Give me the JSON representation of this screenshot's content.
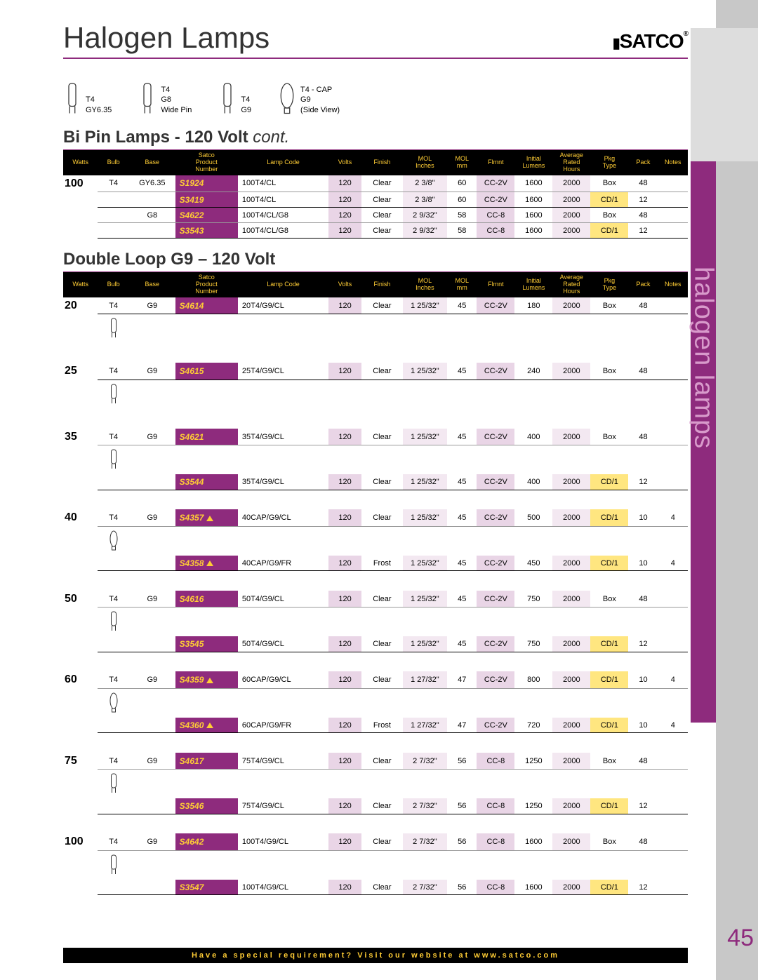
{
  "page_number": "45",
  "header_title": "Halogen Lamps",
  "logo_text": "SATCO",
  "logo_reg": "®",
  "side_tab_text": "halogen lamps",
  "footer_text": "Have a special requirement? Visit our website at www.satco.com",
  "bulb_shapes": [
    {
      "l1": "T4",
      "l2": "GY6.35"
    },
    {
      "l1": "T4",
      "l2": "G8",
      "l3": "Wide Pin"
    },
    {
      "l1": "T4",
      "l2": "G9"
    },
    {
      "l1": "T4 - CAP",
      "l2": "G9",
      "l3": "(Side View)"
    }
  ],
  "section1_title": "Bi Pin Lamps - 120 Volt",
  "section1_suffix": "cont.",
  "section2_title": "Double Loop G9 – 120 Volt",
  "headers": [
    "Watts",
    "Bulb",
    "Base",
    "Satco\nProduct\nNumber",
    "Lamp Code",
    "Volts",
    "Finish",
    "MOL\nInches",
    "MOL\nmm",
    "Flmnt",
    "Initial\nLumens",
    "Average\nRated\nHours",
    "Pkg\nType",
    "Pack",
    "Notes"
  ],
  "t1": [
    {
      "w": "100",
      "b": "T4",
      "ba": "GY6.35",
      "pn": "S1924",
      "lc": "100T4/CL",
      "v": "120",
      "fn": "Clear",
      "mi": "2 3/8\"",
      "mm": "60",
      "fl": "CC-2V",
      "lm": "1600",
      "hr": "2000",
      "pt": "Box",
      "pk": "48",
      "nt": "",
      "cd": false,
      "icon": true
    },
    {
      "w": "",
      "b": "",
      "ba": "",
      "pn": "S3419",
      "lc": "100T4/CL",
      "v": "120",
      "fn": "Clear",
      "mi": "2 3/8\"",
      "mm": "60",
      "fl": "CC-2V",
      "lm": "1600",
      "hr": "2000",
      "pt": "CD/1",
      "pk": "12",
      "nt": "",
      "cd": true,
      "icon": false
    },
    {
      "w": "",
      "b": "",
      "ba": "G8",
      "pn": "S4622",
      "lc": "100T4/CL/G8",
      "v": "120",
      "fn": "Clear",
      "mi": "2 9/32\"",
      "mm": "58",
      "fl": "CC-8",
      "lm": "1600",
      "hr": "2000",
      "pt": "Box",
      "pk": "48",
      "nt": "",
      "cd": false,
      "icon": true
    },
    {
      "w": "",
      "b": "",
      "ba": "",
      "pn": "S3543",
      "lc": "100T4/CL/G8",
      "v": "120",
      "fn": "Clear",
      "mi": "2 9/32\"",
      "mm": "58",
      "fl": "CC-8",
      "lm": "1600",
      "hr": "2000",
      "pt": "CD/1",
      "pk": "12",
      "nt": "",
      "cd": true,
      "icon": false
    }
  ],
  "t2": [
    {
      "grp": "20",
      "rows": [
        {
          "w": "20",
          "b": "T4",
          "ba": "G9",
          "pn": "S4614",
          "tri": false,
          "lc": "20T4/G9/CL",
          "v": "120",
          "fn": "Clear",
          "mi": "1 25/32\"",
          "mm": "45",
          "fl": "CC-2V",
          "lm": "180",
          "hr": "2000",
          "pt": "Box",
          "pk": "48",
          "nt": "",
          "cd": false,
          "icon": true
        }
      ]
    },
    {
      "grp": "25",
      "rows": [
        {
          "w": "25",
          "b": "T4",
          "ba": "G9",
          "pn": "S4615",
          "tri": false,
          "lc": "25T4/G9/CL",
          "v": "120",
          "fn": "Clear",
          "mi": "1 25/32\"",
          "mm": "45",
          "fl": "CC-2V",
          "lm": "240",
          "hr": "2000",
          "pt": "Box",
          "pk": "48",
          "nt": "",
          "cd": false,
          "icon": true
        }
      ]
    },
    {
      "grp": "35",
      "rows": [
        {
          "w": "35",
          "b": "T4",
          "ba": "G9",
          "pn": "S4621",
          "tri": false,
          "lc": "35T4/G9/CL",
          "v": "120",
          "fn": "Clear",
          "mi": "1 25/32\"",
          "mm": "45",
          "fl": "CC-2V",
          "lm": "400",
          "hr": "2000",
          "pt": "Box",
          "pk": "48",
          "nt": "",
          "cd": false,
          "icon": true
        },
        {
          "w": "",
          "b": "",
          "ba": "",
          "pn": "S3544",
          "tri": false,
          "lc": "35T4/G9/CL",
          "v": "120",
          "fn": "Clear",
          "mi": "1 25/32\"",
          "mm": "45",
          "fl": "CC-2V",
          "lm": "400",
          "hr": "2000",
          "pt": "CD/1",
          "pk": "12",
          "nt": "",
          "cd": true,
          "icon": false
        }
      ]
    },
    {
      "grp": "40",
      "rows": [
        {
          "w": "40",
          "b": "T4",
          "ba": "G9",
          "pn": "S4357",
          "tri": true,
          "lc": "40CAP/G9/CL",
          "v": "120",
          "fn": "Clear",
          "mi": "1 25/32\"",
          "mm": "45",
          "fl": "CC-2V",
          "lm": "500",
          "hr": "2000",
          "pt": "CD/1",
          "pk": "10",
          "nt": "4",
          "cd": true,
          "icon": true,
          "cap": true
        },
        {
          "w": "",
          "b": "",
          "ba": "",
          "pn": "S4358",
          "tri": true,
          "lc": "40CAP/G9/FR",
          "v": "120",
          "fn": "Frost",
          "mi": "1 25/32\"",
          "mm": "45",
          "fl": "CC-2V",
          "lm": "450",
          "hr": "2000",
          "pt": "CD/1",
          "pk": "10",
          "nt": "4",
          "cd": true,
          "icon": false
        }
      ]
    },
    {
      "grp": "50",
      "rows": [
        {
          "w": "50",
          "b": "T4",
          "ba": "G9",
          "pn": "S4616",
          "tri": false,
          "lc": "50T4/G9/CL",
          "v": "120",
          "fn": "Clear",
          "mi": "1 25/32\"",
          "mm": "45",
          "fl": "CC-2V",
          "lm": "750",
          "hr": "2000",
          "pt": "Box",
          "pk": "48",
          "nt": "",
          "cd": false,
          "icon": true
        },
        {
          "w": "",
          "b": "",
          "ba": "",
          "pn": "S3545",
          "tri": false,
          "lc": "50T4/G9/CL",
          "v": "120",
          "fn": "Clear",
          "mi": "1 25/32\"",
          "mm": "45",
          "fl": "CC-2V",
          "lm": "750",
          "hr": "2000",
          "pt": "CD/1",
          "pk": "12",
          "nt": "",
          "cd": true,
          "icon": false
        }
      ]
    },
    {
      "grp": "60",
      "rows": [
        {
          "w": "60",
          "b": "T4",
          "ba": "G9",
          "pn": "S4359",
          "tri": true,
          "lc": "60CAP/G9/CL",
          "v": "120",
          "fn": "Clear",
          "mi": "1 27/32\"",
          "mm": "47",
          "fl": "CC-2V",
          "lm": "800",
          "hr": "2000",
          "pt": "CD/1",
          "pk": "10",
          "nt": "4",
          "cd": true,
          "icon": true,
          "cap": true
        },
        {
          "w": "",
          "b": "",
          "ba": "",
          "pn": "S4360",
          "tri": true,
          "lc": "60CAP/G9/FR",
          "v": "120",
          "fn": "Frost",
          "mi": "1 27/32\"",
          "mm": "47",
          "fl": "CC-2V",
          "lm": "720",
          "hr": "2000",
          "pt": "CD/1",
          "pk": "10",
          "nt": "4",
          "cd": true,
          "icon": false
        }
      ]
    },
    {
      "grp": "75",
      "rows": [
        {
          "w": "75",
          "b": "T4",
          "ba": "G9",
          "pn": "S4617",
          "tri": false,
          "lc": "75T4/G9/CL",
          "v": "120",
          "fn": "Clear",
          "mi": "2 7/32\"",
          "mm": "56",
          "fl": "CC-8",
          "lm": "1250",
          "hr": "2000",
          "pt": "Box",
          "pk": "48",
          "nt": "",
          "cd": false,
          "icon": true
        },
        {
          "w": "",
          "b": "",
          "ba": "",
          "pn": "S3546",
          "tri": false,
          "lc": "75T4/G9/CL",
          "v": "120",
          "fn": "Clear",
          "mi": "2 7/32\"",
          "mm": "56",
          "fl": "CC-8",
          "lm": "1250",
          "hr": "2000",
          "pt": "CD/1",
          "pk": "12",
          "nt": "",
          "cd": true,
          "icon": false
        }
      ]
    },
    {
      "grp": "100",
      "rows": [
        {
          "w": "100",
          "b": "T4",
          "ba": "G9",
          "pn": "S4642",
          "tri": false,
          "lc": "100T4/G9/CL",
          "v": "120",
          "fn": "Clear",
          "mi": "2 7/32\"",
          "mm": "56",
          "fl": "CC-8",
          "lm": "1600",
          "hr": "2000",
          "pt": "Box",
          "pk": "48",
          "nt": "",
          "cd": false,
          "icon": true
        },
        {
          "w": "",
          "b": "",
          "ba": "",
          "pn": "S3547",
          "tri": false,
          "lc": "100T4/G9/CL",
          "v": "120",
          "fn": "Clear",
          "mi": "2 7/32\"",
          "mm": "56",
          "fl": "CC-8",
          "lm": "1600",
          "hr": "2000",
          "pt": "CD/1",
          "pk": "12",
          "nt": "",
          "cd": true,
          "icon": false
        }
      ]
    }
  ]
}
